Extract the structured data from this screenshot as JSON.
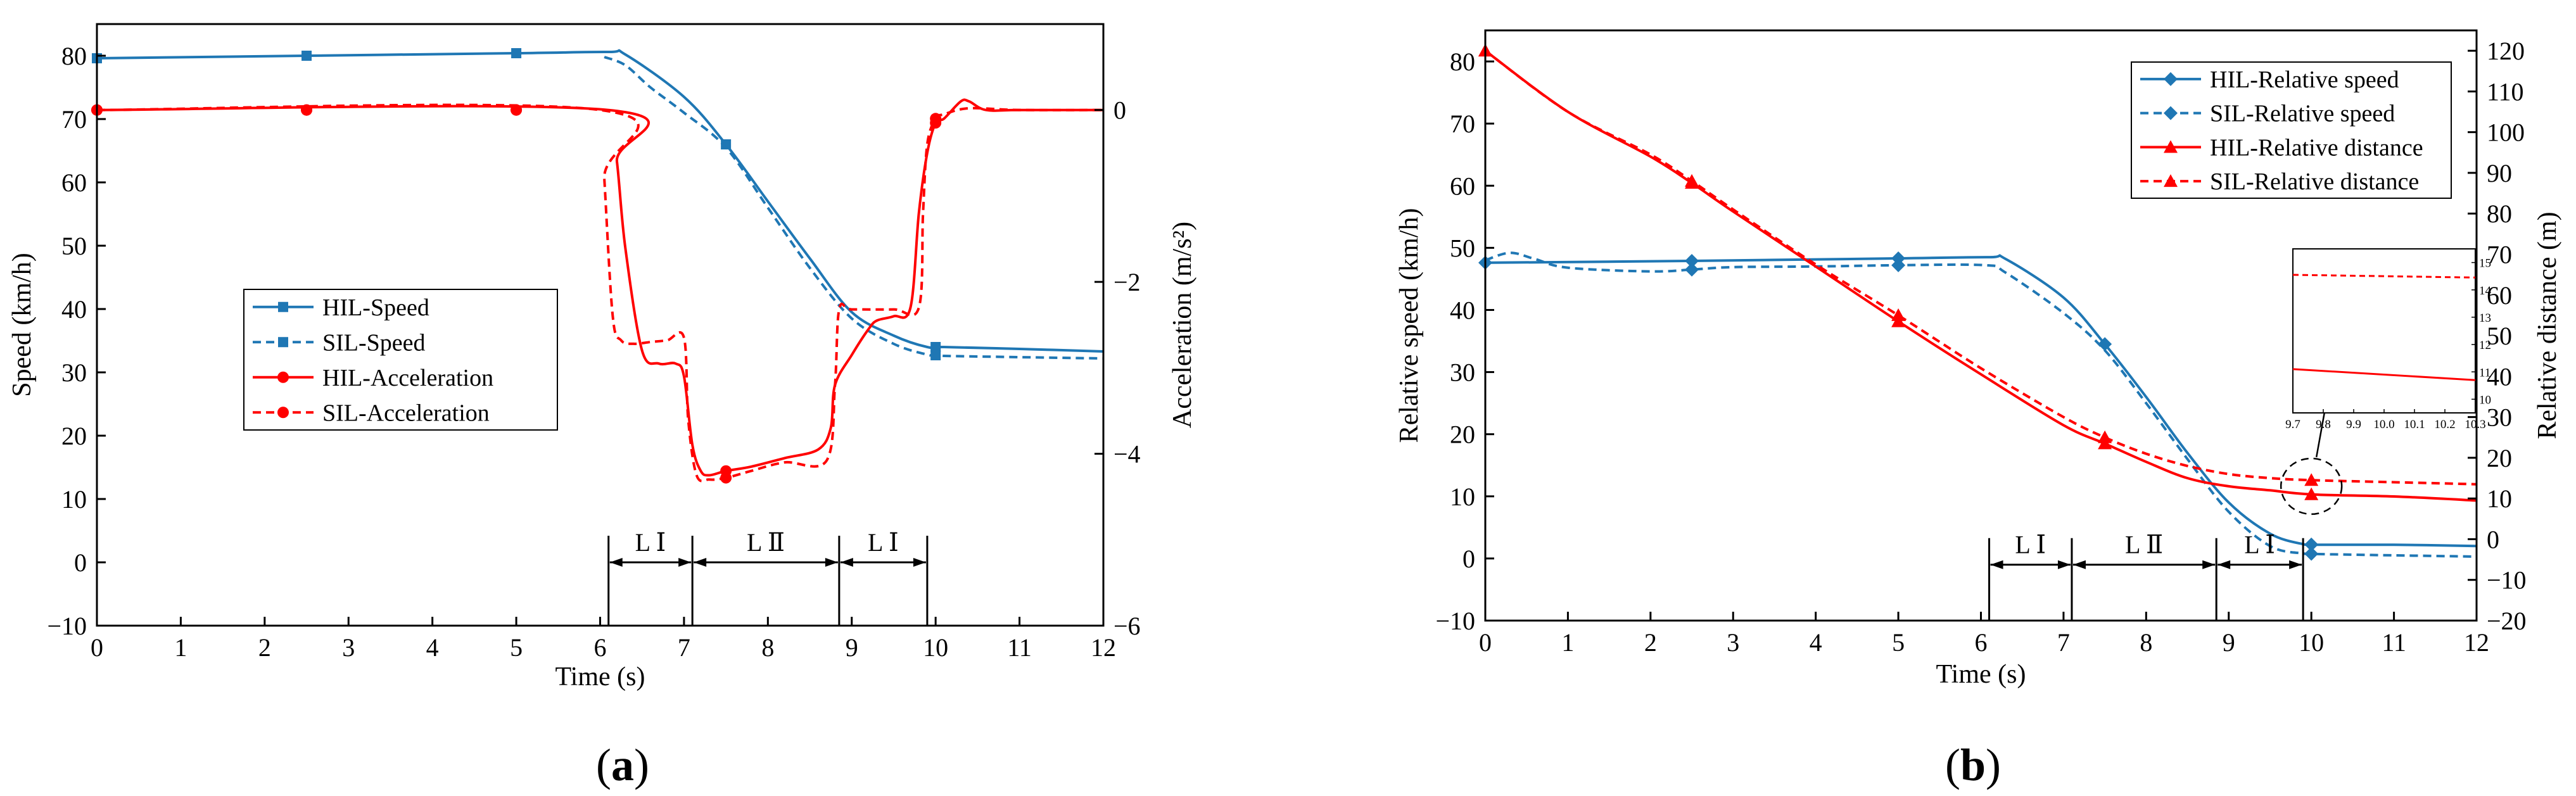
{
  "figure": {
    "panel_a_label": [
      "(",
      "a",
      ")"
    ],
    "panel_b_label": [
      "(",
      "b",
      ")"
    ]
  },
  "colors": {
    "blue": "#1f77b4",
    "red": "#ff0000",
    "black": "#000000"
  },
  "chart_data": [
    {
      "id": "a",
      "type": "line",
      "title": "",
      "xlabel": "Time (s)",
      "ylabel_left": "Speed (km/h)",
      "ylabel_right": "Acceleration (m/s²)",
      "xlim": [
        0,
        12
      ],
      "ylim_left": [
        -10,
        85
      ],
      "ylim_right": [
        -6,
        1
      ],
      "xticks": [
        0,
        1,
        2,
        3,
        4,
        5,
        6,
        7,
        8,
        9,
        10,
        11,
        12
      ],
      "yticks_left": [
        -10,
        0,
        10,
        20,
        30,
        40,
        50,
        60,
        70,
        80
      ],
      "yticks_right": [
        -6,
        -4,
        -2,
        0
      ],
      "legend_position": "center-left",
      "series": [
        {
          "name": "HIL-Speed",
          "axis": "left",
          "color": "#1f77b4",
          "dash": "solid",
          "marker": "square",
          "x": [
            0,
            2.5,
            5,
            6.1,
            6.3,
            7,
            7.5,
            8,
            8.5,
            9,
            9.5,
            9.9,
            10.1,
            11,
            12
          ],
          "y": [
            79.6,
            80,
            80.4,
            80.6,
            80.2,
            73.5,
            66,
            57,
            48,
            39.5,
            35.8,
            34,
            34,
            33.7,
            33.3
          ],
          "marker_x": [
            0,
            2.5,
            5,
            7.5,
            10
          ]
        },
        {
          "name": "SIL-Speed",
          "axis": "left",
          "color": "#1f77b4",
          "dash": "dashed",
          "marker": "square",
          "x": [
            6.05,
            6.3,
            6.6,
            7,
            7.5,
            8,
            8.5,
            9,
            9.5,
            9.9,
            10.1,
            11,
            12
          ],
          "y": [
            79.8,
            78.5,
            75,
            71,
            65.5,
            56,
            46.5,
            38.5,
            34.5,
            32.8,
            32.6,
            32.4,
            32.2
          ],
          "marker_x": [
            10
          ]
        },
        {
          "name": "HIL-Acceleration",
          "axis": "right",
          "color": "#ff0000",
          "dash": "solid",
          "marker": "circle",
          "x": [
            0,
            6.1,
            6.2,
            6.3,
            6.5,
            6.7,
            6.9,
            7,
            7.1,
            7.2,
            7.3,
            7.5,
            7.8,
            8.2,
            8.6,
            8.75,
            8.8,
            9.0,
            9.2,
            9.3,
            9.5,
            9.7,
            9.8,
            9.9,
            10.0,
            10.1,
            10.3,
            10.4,
            10.6,
            11,
            12
          ],
          "y": [
            0,
            0,
            -0.6,
            -1.6,
            -2.8,
            -2.95,
            -2.95,
            -3.1,
            -3.9,
            -4.2,
            -4.25,
            -4.2,
            -4.15,
            -4.05,
            -3.95,
            -3.7,
            -3.2,
            -2.85,
            -2.55,
            -2.45,
            -2.4,
            -2.3,
            -1.2,
            -0.5,
            -0.15,
            -0.1,
            0.1,
            0.1,
            0,
            0,
            0
          ],
          "marker_x": [
            0,
            2.5,
            5,
            7.5,
            10
          ]
        },
        {
          "name": "SIL-Acceleration",
          "axis": "right",
          "color": "#ff0000",
          "dash": "dashed",
          "marker": "circle",
          "x": [
            0,
            6.0,
            6.05,
            6.15,
            6.25,
            6.4,
            6.6,
            6.8,
            7.0,
            7.05,
            7.15,
            7.3,
            7.5,
            7.8,
            8.2,
            8.7,
            8.8,
            8.85,
            9.0,
            9.5,
            9.8,
            9.85,
            9.9,
            10.0,
            10.1,
            10.4,
            11,
            12
          ],
          "y": [
            0,
            0,
            -0.8,
            -2.4,
            -2.68,
            -2.72,
            -2.7,
            -2.68,
            -2.65,
            -3.6,
            -4.25,
            -4.3,
            -4.28,
            -4.2,
            -4.1,
            -4.08,
            -3.2,
            -2.32,
            -2.32,
            -2.32,
            -2.3,
            -1.2,
            -0.4,
            -0.1,
            -0.05,
            0.02,
            0,
            0
          ],
          "marker_x": [
            0,
            2.5,
            5,
            7.5,
            10
          ]
        }
      ],
      "regions": [
        {
          "label": "L Ⅰ",
          "x_start": 6.1,
          "x_end": 7.1
        },
        {
          "label": "L Ⅱ",
          "x_start": 7.1,
          "x_end": 8.85
        },
        {
          "label": "L Ⅰ",
          "x_start": 8.85,
          "x_end": 9.9
        }
      ],
      "region_y": 0
    },
    {
      "id": "b",
      "type": "line",
      "title": "",
      "xlabel": "Time (s)",
      "ylabel_left": "Relative speed (km/h)",
      "ylabel_right": "Relative distance (m)",
      "xlim": [
        0,
        12
      ],
      "ylim_left": [
        -10,
        85
      ],
      "ylim_right": [
        -20,
        125
      ],
      "xticks": [
        0,
        1,
        2,
        3,
        4,
        5,
        6,
        7,
        8,
        9,
        10,
        11,
        12
      ],
      "yticks_left": [
        -10,
        0,
        10,
        20,
        30,
        40,
        50,
        60,
        70,
        80
      ],
      "yticks_right": [
        -20,
        -10,
        0,
        10,
        20,
        30,
        40,
        50,
        60,
        70,
        80,
        90,
        100,
        110,
        120
      ],
      "legend_position": "top-right",
      "series": [
        {
          "name": "HIL-Relative speed",
          "axis": "left",
          "color": "#1f77b4",
          "dash": "solid",
          "marker": "diamond",
          "x": [
            0,
            2.5,
            5,
            6.1,
            6.3,
            7,
            7.5,
            8,
            8.5,
            9,
            9.5,
            9.9,
            10.1,
            11,
            12
          ],
          "y": [
            47.6,
            47.9,
            48.3,
            48.5,
            48.2,
            42,
            34.5,
            26,
            17,
            9,
            4,
            2.3,
            2.2,
            2.2,
            2.0
          ],
          "marker_x": [
            0,
            2.5,
            5,
            7.5,
            10
          ]
        },
        {
          "name": "SIL-Relative speed",
          "axis": "left",
          "color": "#1f77b4",
          "dash": "dashed",
          "marker": "diamond",
          "x": [
            0,
            0.3,
            0.6,
            1,
            2,
            2.5,
            3,
            4,
            5,
            6.05,
            6.3,
            7,
            7.5,
            8,
            8.5,
            9,
            9.5,
            9.9,
            10.1,
            11,
            12
          ],
          "y": [
            48,
            49.2,
            48.2,
            46.8,
            46.2,
            46.5,
            46.9,
            47,
            47.2,
            47.2,
            46,
            39.5,
            33.5,
            25,
            16,
            7.5,
            2,
            0.8,
            0.7,
            0.5,
            0.3
          ],
          "marker_x": [
            2.5,
            5,
            10
          ]
        },
        {
          "name": "HIL-Relative distance",
          "axis": "right",
          "color": "#ff0000",
          "dash": "solid",
          "marker": "triangle",
          "x": [
            0,
            1,
            2,
            2.5,
            3,
            4,
            5,
            6,
            7,
            7.5,
            8,
            8.5,
            9,
            9.5,
            10,
            11,
            12
          ],
          "y": [
            120,
            105,
            94,
            87.5,
            80.5,
            67,
            53.5,
            40.5,
            28,
            23.5,
            19,
            15,
            13,
            12,
            11,
            10.5,
            9.5
          ],
          "marker_x": [
            0,
            2.5,
            5,
            7.5,
            10
          ]
        },
        {
          "name": "SIL-Relative distance",
          "axis": "right",
          "color": "#ff0000",
          "dash": "dashed",
          "marker": "triangle",
          "x": [
            0,
            1,
            2,
            2.5,
            3,
            4,
            5,
            6,
            7,
            7.5,
            8,
            8.5,
            9,
            9.5,
            10,
            11,
            12
          ],
          "y": [
            120,
            105,
            94.5,
            88,
            81,
            67.5,
            55,
            42,
            30,
            25,
            21,
            18,
            16,
            15,
            14.5,
            14,
            13.5
          ],
          "marker_x": [
            0,
            2.5,
            5,
            7.5,
            10
          ]
        }
      ],
      "regions": [
        {
          "label": "L Ⅰ",
          "x_start": 6.1,
          "x_end": 7.1
        },
        {
          "label": "L Ⅱ",
          "x_start": 7.1,
          "x_end": 8.85
        },
        {
          "label": "L Ⅰ",
          "x_start": 8.85,
          "x_end": 9.9
        }
      ],
      "region_y": -1,
      "zoom_center": {
        "x": 10.0,
        "y_right": 13
      },
      "inset": {
        "xlim": [
          9.7,
          10.3
        ],
        "ylim": [
          9.5,
          15.5
        ],
        "xticks": [
          "9.7",
          "9.8",
          "9.9",
          "10.0",
          "10.1",
          "10.2",
          "10.3"
        ],
        "yticks": [
          "10",
          "11",
          "12",
          "13",
          "14",
          "15"
        ],
        "series": [
          {
            "name": "SIL-Relative distance",
            "color": "#ff0000",
            "dash": "dashed",
            "x": [
              9.7,
              10.3
            ],
            "y": [
              14.55,
              14.45
            ]
          },
          {
            "name": "HIL-Relative distance",
            "color": "#ff0000",
            "dash": "solid",
            "x": [
              9.7,
              10.3
            ],
            "y": [
              11.1,
              10.7
            ]
          }
        ]
      }
    }
  ]
}
